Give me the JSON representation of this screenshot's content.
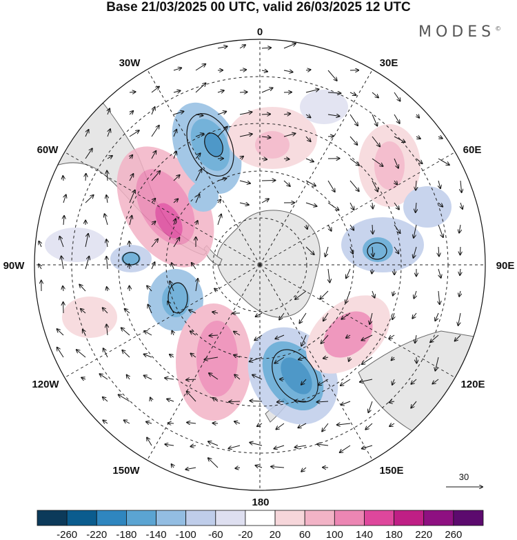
{
  "title": "Base 21/03/2025 00 UTC, valid 26/03/2025 12 UTC",
  "brand": {
    "name": "MODES",
    "mark": "©"
  },
  "map": {
    "projection": "south-polar-stereographic",
    "meridian_labels": [
      {
        "text": "0",
        "lon": 0
      },
      {
        "text": "30E",
        "lon": 30
      },
      {
        "text": "60E",
        "lon": 60
      },
      {
        "text": "90E",
        "lon": 90
      },
      {
        "text": "120E",
        "lon": 120
      },
      {
        "text": "150E",
        "lon": 150
      },
      {
        "text": "180",
        "lon": 180
      },
      {
        "text": "150W",
        "lon": -150
      },
      {
        "text": "120W",
        "lon": -120
      },
      {
        "text": "90W",
        "lon": -90
      },
      {
        "text": "60W",
        "lon": -60
      },
      {
        "text": "30W",
        "lon": -30
      }
    ],
    "colors": {
      "land": "#e6e6e6",
      "coast": "#666666",
      "grid": "#222222"
    }
  },
  "vector_reference": {
    "value": "30"
  },
  "colorbar": {
    "ticks": [
      "-260",
      "-220",
      "-180",
      "-140",
      "-100",
      "-60",
      "-20",
      "20",
      "60",
      "100",
      "140",
      "180",
      "220",
      "260"
    ],
    "colors": [
      "#0c3a5a",
      "#0b5c8e",
      "#2f86bf",
      "#5ba4d2",
      "#93bde2",
      "#bfcdea",
      "#dedff0",
      "#ffffff",
      "#f6d6da",
      "#f2b3c6",
      "#ec86b3",
      "#de479c",
      "#bf1f85",
      "#8e1081",
      "#5c0a6e"
    ]
  }
}
